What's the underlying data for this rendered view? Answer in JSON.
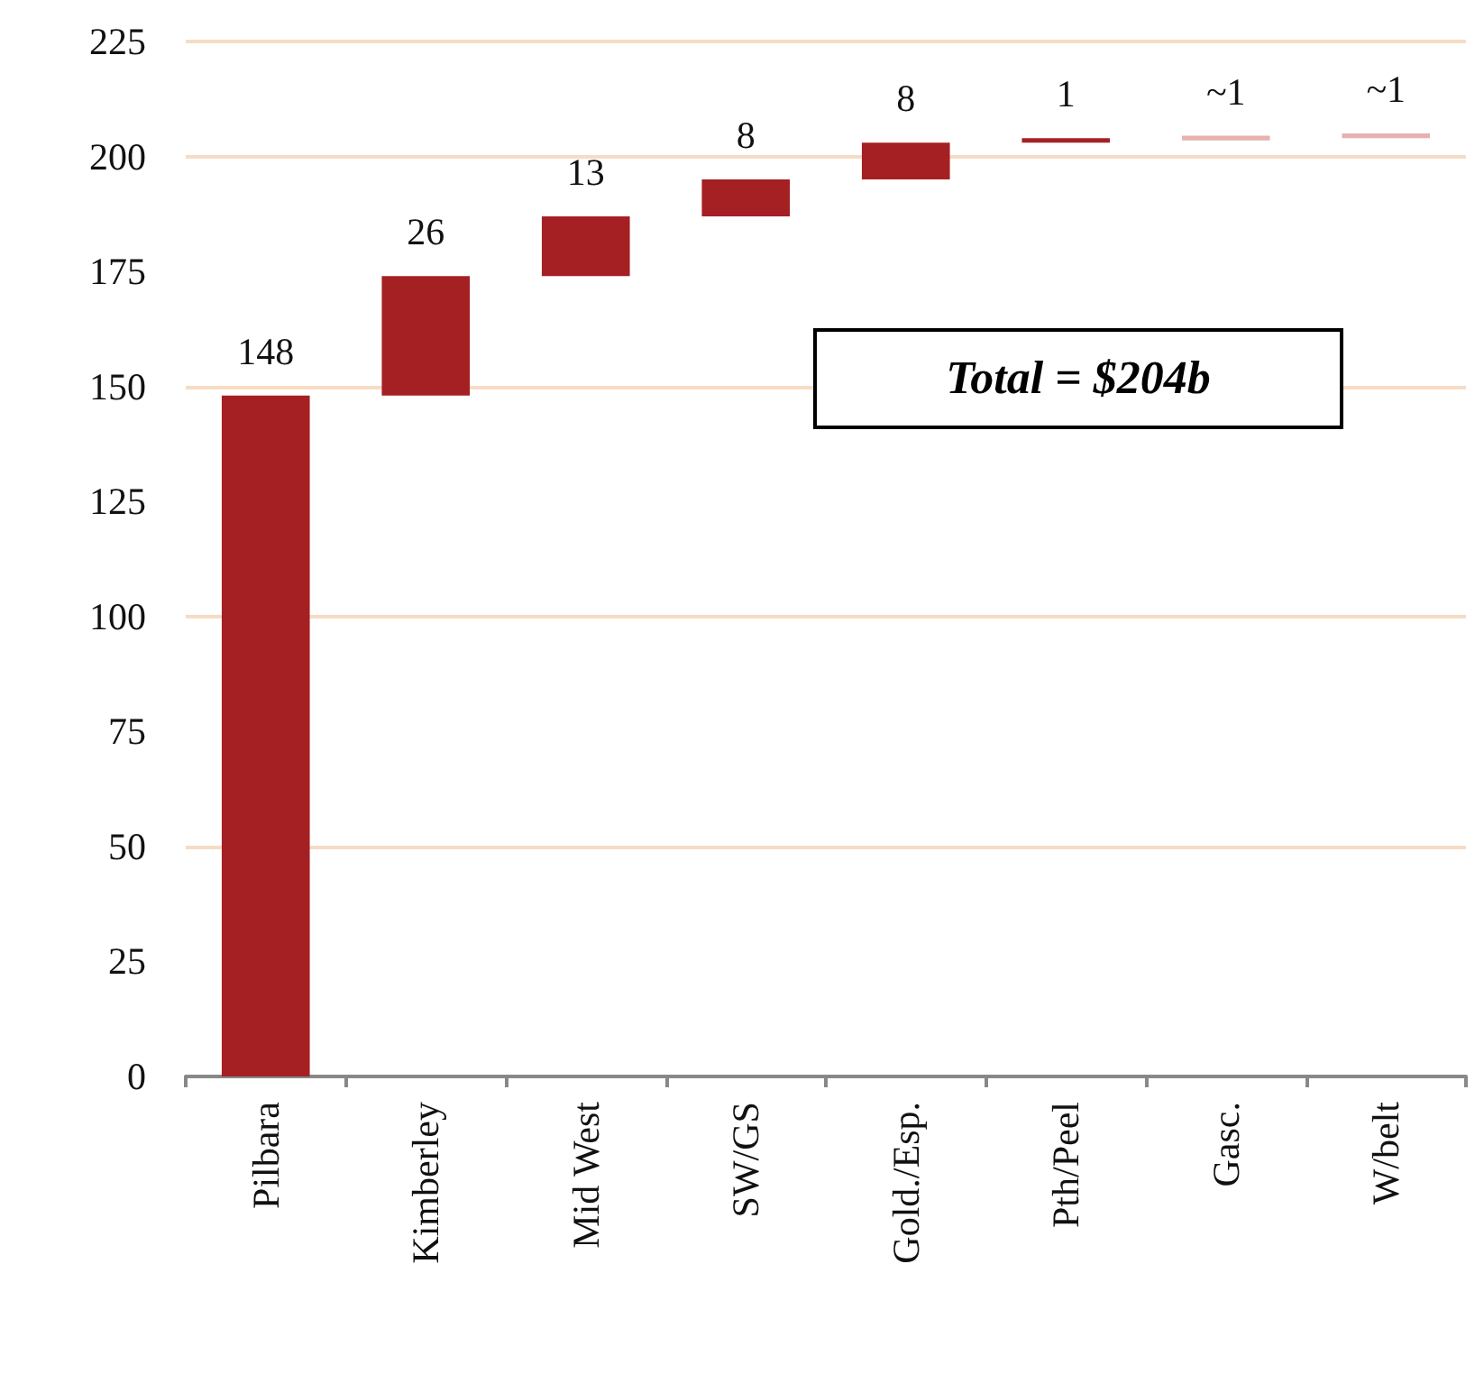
{
  "chart_data": {
    "type": "bar",
    "categories": [
      "Pilbara",
      "Kimberley",
      "Mid West",
      "SW/GS",
      "Gold./Esp.",
      "Pth/Peel",
      "Gasc.",
      "W/belt"
    ],
    "values": [
      148,
      26,
      13,
      8,
      8,
      1,
      1,
      1
    ],
    "base": [
      0,
      148,
      174,
      187,
      195,
      203,
      203.5,
      204
    ],
    "colors": [
      "#a52023",
      "#a52023",
      "#a52023",
      "#a52023",
      "#a52023",
      "#a52023",
      "#e8b0b0",
      "#e8b0b0"
    ],
    "value_labels": [
      "148",
      "26",
      "13",
      "8",
      "8",
      "1",
      "~1",
      "~1"
    ],
    "annotations": [
      "Total = $204b"
    ],
    "ylim": [
      0,
      225
    ],
    "yticks": [
      0,
      25,
      50,
      75,
      100,
      125,
      150,
      175,
      200,
      225
    ],
    "grid": "y"
  }
}
